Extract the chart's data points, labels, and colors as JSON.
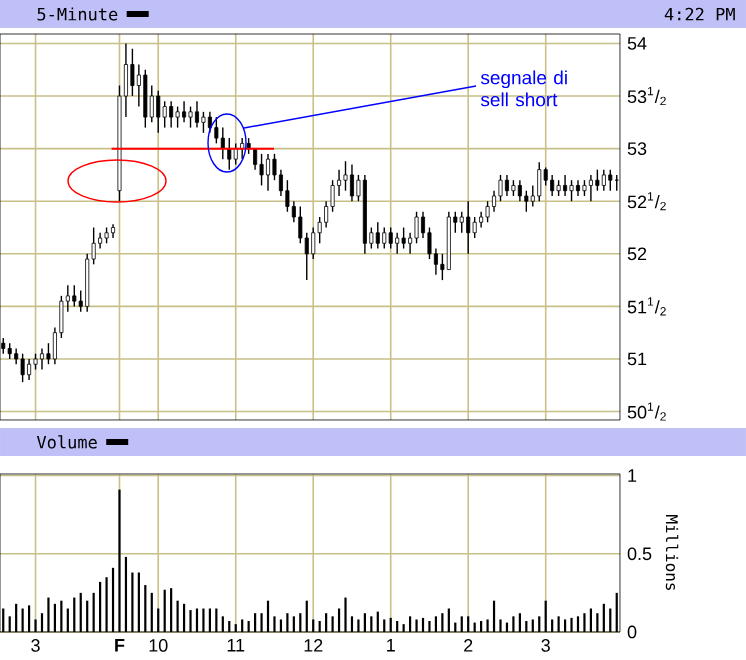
{
  "chart_data": [
    {
      "type": "candlestick",
      "title": "5-Minute",
      "subtitle": "4:22 PM",
      "color": "#000000",
      "categories": [
        null,
        null,
        null,
        null,
        null,
        null,
        null,
        null,
        null,
        null,
        null,
        null,
        null,
        null,
        null,
        null,
        null,
        null,
        null,
        null,
        null,
        null,
        null,
        null,
        null,
        null,
        null,
        null,
        null,
        null,
        null,
        null,
        null,
        null,
        null,
        null,
        null,
        null,
        null,
        null,
        null,
        null,
        null,
        null,
        null,
        null,
        null,
        null,
        null,
        null,
        null,
        null,
        null,
        null,
        null,
        null,
        null,
        null,
        null,
        null,
        null,
        null,
        null,
        null,
        null,
        null,
        null,
        null,
        null,
        null,
        null,
        null,
        null,
        null,
        null,
        null,
        null,
        null,
        null,
        null,
        null,
        null,
        null,
        null,
        null,
        null,
        null,
        null,
        null,
        null,
        null,
        null,
        null,
        null,
        null,
        null
      ],
      "ohlc": [
        [
          51.15,
          51.2,
          51.05,
          51.1
        ],
        [
          51.1,
          51.15,
          51.0,
          51.05
        ],
        [
          51.05,
          51.1,
          50.95,
          51.0
        ],
        [
          51.0,
          51.05,
          50.78,
          50.85
        ],
        [
          50.85,
          51.0,
          50.8,
          50.95
        ],
        [
          50.95,
          51.05,
          50.9,
          51.0
        ],
        [
          51.0,
          51.1,
          50.9,
          51.05
        ],
        [
          51.05,
          51.15,
          50.95,
          51.0
        ],
        [
          51.0,
          51.3,
          50.95,
          51.25
        ],
        [
          51.25,
          51.6,
          51.2,
          51.55
        ],
        [
          51.55,
          51.7,
          51.45,
          51.6
        ],
        [
          51.6,
          51.7,
          51.5,
          51.55
        ],
        [
          51.55,
          51.65,
          51.45,
          51.5
        ],
        [
          51.5,
          52.0,
          51.45,
          51.95
        ],
        [
          51.95,
          52.25,
          51.9,
          52.1
        ],
        [
          52.1,
          52.2,
          52.05,
          52.15
        ],
        [
          52.15,
          52.25,
          52.1,
          52.2
        ],
        [
          52.2,
          52.28,
          52.15,
          52.25
        ],
        [
          52.6,
          53.6,
          52.5,
          53.5
        ],
        [
          53.5,
          54.0,
          53.3,
          53.8
        ],
        [
          53.8,
          53.95,
          53.5,
          53.6
        ],
        [
          53.6,
          53.8,
          53.4,
          53.7
        ],
        [
          53.7,
          53.75,
          53.2,
          53.3
        ],
        [
          53.3,
          53.6,
          53.25,
          53.5
        ],
        [
          53.5,
          53.55,
          53.15,
          53.3
        ],
        [
          53.3,
          53.45,
          53.2,
          53.4
        ],
        [
          53.4,
          53.45,
          53.2,
          53.3
        ],
        [
          53.3,
          53.4,
          53.2,
          53.35
        ],
        [
          53.35,
          53.45,
          53.25,
          53.3
        ],
        [
          53.3,
          53.4,
          53.2,
          53.35
        ],
        [
          53.35,
          53.45,
          53.2,
          53.25
        ],
        [
          53.25,
          53.35,
          53.15,
          53.3
        ],
        [
          53.3,
          53.35,
          53.15,
          53.2
        ],
        [
          53.2,
          53.3,
          53.05,
          53.1
        ],
        [
          53.1,
          53.2,
          52.9,
          53.0
        ],
        [
          53.0,
          53.1,
          52.8,
          52.9
        ],
        [
          52.9,
          53.05,
          52.85,
          53.0
        ],
        [
          53.0,
          53.1,
          52.9,
          53.05
        ],
        [
          53.05,
          53.1,
          52.95,
          53.0
        ],
        [
          53.0,
          53.0,
          52.8,
          52.85
        ],
        [
          52.85,
          52.95,
          52.65,
          52.75
        ],
        [
          52.75,
          52.95,
          52.6,
          52.9
        ],
        [
          52.9,
          52.95,
          52.7,
          52.75
        ],
        [
          52.75,
          52.8,
          52.55,
          52.6
        ],
        [
          52.6,
          52.7,
          52.4,
          52.45
        ],
        [
          52.45,
          52.5,
          52.3,
          52.35
        ],
        [
          52.35,
          52.45,
          52.1,
          52.15
        ],
        [
          52.15,
          52.2,
          51.75,
          52.0
        ],
        [
          52.0,
          52.25,
          51.95,
          52.2
        ],
        [
          52.2,
          52.35,
          52.1,
          52.3
        ],
        [
          52.3,
          52.5,
          52.25,
          52.45
        ],
        [
          52.45,
          52.7,
          52.4,
          52.65
        ],
        [
          52.65,
          52.8,
          52.55,
          52.7
        ],
        [
          52.7,
          52.88,
          52.6,
          52.75
        ],
        [
          52.75,
          52.85,
          52.5,
          52.55
        ],
        [
          52.55,
          52.75,
          52.5,
          52.7
        ],
        [
          52.7,
          52.75,
          52.0,
          52.1
        ],
        [
          52.1,
          52.25,
          52.05,
          52.2
        ],
        [
          52.2,
          52.3,
          52.05,
          52.1
        ],
        [
          52.1,
          52.25,
          52.05,
          52.2
        ],
        [
          52.2,
          52.25,
          52.05,
          52.1
        ],
        [
          52.1,
          52.2,
          52.0,
          52.15
        ],
        [
          52.15,
          52.25,
          52.05,
          52.1
        ],
        [
          52.1,
          52.2,
          52.0,
          52.15
        ],
        [
          52.15,
          52.4,
          52.1,
          52.35
        ],
        [
          52.35,
          52.4,
          52.15,
          52.2
        ],
        [
          52.2,
          52.25,
          51.95,
          52.0
        ],
        [
          52.0,
          52.05,
          51.8,
          51.9
        ],
        [
          51.9,
          52.0,
          51.75,
          51.85
        ],
        [
          51.85,
          52.4,
          51.85,
          52.35
        ],
        [
          52.35,
          52.4,
          52.2,
          52.3
        ],
        [
          52.3,
          52.4,
          52.2,
          52.35
        ],
        [
          52.35,
          52.5,
          52.0,
          52.2
        ],
        [
          52.2,
          52.35,
          52.15,
          52.3
        ],
        [
          52.3,
          52.4,
          52.25,
          52.35
        ],
        [
          52.35,
          52.5,
          52.3,
          52.45
        ],
        [
          52.45,
          52.6,
          52.4,
          52.55
        ],
        [
          52.55,
          52.75,
          52.5,
          52.7
        ],
        [
          52.7,
          52.75,
          52.55,
          52.6
        ],
        [
          52.6,
          52.7,
          52.55,
          52.65
        ],
        [
          52.65,
          52.7,
          52.5,
          52.55
        ],
        [
          52.55,
          52.6,
          52.4,
          52.5
        ],
        [
          52.5,
          52.65,
          52.45,
          52.55
        ],
        [
          52.55,
          52.87,
          52.5,
          52.8
        ],
        [
          52.8,
          52.82,
          52.65,
          52.7
        ],
        [
          52.7,
          52.75,
          52.55,
          52.6
        ],
        [
          52.6,
          52.7,
          52.55,
          52.65
        ],
        [
          52.65,
          52.75,
          52.55,
          52.6
        ],
        [
          52.6,
          52.7,
          52.5,
          52.65
        ],
        [
          52.65,
          52.7,
          52.55,
          52.6
        ],
        [
          52.6,
          52.7,
          52.55,
          52.65
        ],
        [
          52.65,
          52.75,
          52.5,
          52.7
        ],
        [
          52.7,
          52.8,
          52.6,
          52.65
        ],
        [
          52.65,
          52.8,
          52.6,
          52.75
        ],
        [
          52.75,
          52.8,
          52.6,
          52.7
        ],
        [
          52.7,
          52.75,
          52.6,
          52.7
        ]
      ],
      "annotations": [
        "segnale di sell short"
      ],
      "ref_lines": [
        {
          "axis": "y",
          "value": 53,
          "color": "#ff0000"
        }
      ],
      "ylim": [
        50.42,
        54.09
      ],
      "yticks": [
        {
          "value": 50.5,
          "label": "50$^{1}$/$_{2}$"
        },
        51,
        {
          "value": 51.5,
          "label": "51$^{1}$/$_{2}$"
        },
        52,
        {
          "value": 52.5,
          "label": "52$^{1}$/$_{2}$"
        },
        53,
        {
          "value": 53.5,
          "label": "53$^{1}$/$_{2}$"
        },
        54
      ],
      "grid": true,
      "tick_labels": "y"
    },
    {
      "type": "bar",
      "title": "Volume",
      "ylabel": "Millions",
      "color": "#000000",
      "categories": [
        null,
        null,
        null,
        null,
        null,
        "3",
        null,
        null,
        null,
        null,
        null,
        null,
        null,
        null,
        null,
        null,
        null,
        null,
        "**F**",
        null,
        null,
        null,
        null,
        null,
        "10",
        null,
        null,
        null,
        null,
        null,
        null,
        null,
        null,
        null,
        null,
        null,
        "11",
        null,
        null,
        null,
        null,
        null,
        null,
        null,
        null,
        null,
        null,
        null,
        "12",
        null,
        null,
        null,
        null,
        null,
        null,
        null,
        null,
        null,
        null,
        null,
        "1",
        null,
        null,
        null,
        null,
        null,
        null,
        null,
        null,
        null,
        null,
        null,
        "2",
        null,
        null,
        null,
        null,
        null,
        null,
        null,
        null,
        null,
        null,
        null,
        "3",
        null,
        null,
        null,
        null,
        null,
        null,
        null,
        null,
        null,
        null,
        null
      ],
      "values": [
        0.15,
        0.1,
        0.18,
        0.15,
        0.17,
        0.08,
        0.12,
        0.22,
        0.18,
        0.2,
        0.15,
        0.22,
        0.25,
        0.2,
        0.25,
        0.32,
        0.35,
        0.41,
        0.91,
        0.48,
        0.38,
        0.38,
        0.3,
        0.25,
        0.15,
        0.27,
        0.28,
        0.2,
        0.18,
        0.14,
        0.15,
        0.15,
        0.15,
        0.15,
        0.1,
        0.07,
        0.05,
        0.08,
        0.07,
        0.12,
        0.12,
        0.2,
        0.1,
        0.08,
        0.12,
        0.1,
        0.12,
        0.2,
        0.08,
        0.07,
        0.12,
        0.1,
        0.15,
        0.22,
        0.1,
        0.08,
        0.12,
        0.1,
        0.13,
        0.08,
        0.09,
        0.07,
        0.05,
        0.1,
        0.08,
        0.09,
        0.07,
        0.1,
        0.12,
        0.15,
        0.06,
        0.1,
        0.1,
        0.06,
        0.07,
        0.08,
        0.2,
        0.08,
        0.06,
        0.1,
        0.12,
        0.07,
        0.08,
        0.1,
        0.2,
        0.08,
        0.1,
        0.08,
        0.09,
        0.1,
        0.12,
        0.15,
        0.12,
        0.18,
        0.15,
        0.25
      ],
      "ylim": [
        0,
        1.01
      ],
      "yticks": [
        0,
        0.5,
        1
      ],
      "grid": true
    }
  ]
}
